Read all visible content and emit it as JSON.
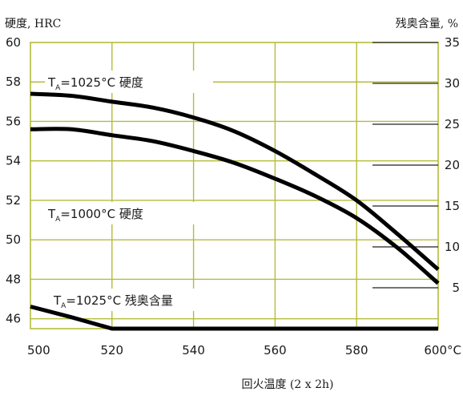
{
  "chart_data": {
    "type": "line",
    "ylabel_left": "硬度, HRC",
    "ylabel_right": "残奥含量, %",
    "xlabel": "回火温度 (2 x 2h)",
    "x_ticks": [
      "500",
      "520",
      "540",
      "560",
      "580",
      "600°C"
    ],
    "y_left_ticks": [
      "46",
      "48",
      "50",
      "52",
      "54",
      "56",
      "58",
      "60"
    ],
    "y_right_ticks": [
      "5",
      "10",
      "15",
      "20",
      "25",
      "30",
      "35"
    ],
    "xlim": [
      500,
      600
    ],
    "ylim_left": [
      45.5,
      60
    ],
    "ylim_right": [
      0,
      35
    ],
    "grid": true,
    "line_color": "#000000",
    "grid_color": "#b5bc3a",
    "series": [
      {
        "name": "T_A=1025°C 硬度",
        "label_main": "T",
        "label_sub": "A",
        "label_rest": "=1025°C 硬度",
        "axis": "left",
        "x": [
          500,
          510,
          520,
          530,
          540,
          550,
          560,
          570,
          580,
          590,
          600
        ],
        "y": [
          57.4,
          57.3,
          57.0,
          56.7,
          56.2,
          55.5,
          54.5,
          53.3,
          52.0,
          50.3,
          48.5
        ]
      },
      {
        "name": "T_A=1000°C 硬度",
        "label_main": "T",
        "label_sub": "A",
        "label_rest": "=1000°C 硬度",
        "axis": "left",
        "x": [
          500,
          510,
          520,
          530,
          540,
          550,
          560,
          570,
          580,
          590,
          600
        ],
        "y": [
          55.6,
          55.6,
          55.3,
          55.0,
          54.5,
          53.9,
          53.1,
          52.2,
          51.1,
          49.6,
          47.8
        ]
      },
      {
        "name": "T_A=1025°C 残奥含量",
        "label_main": "T",
        "label_sub": "A",
        "label_rest": "=1025°C 残奥含量",
        "axis": "right",
        "x": [
          500,
          510,
          520,
          530,
          540,
          560,
          580,
          600
        ],
        "y": [
          2.7,
          1.4,
          0,
          0,
          0,
          0,
          0,
          0
        ]
      }
    ]
  }
}
